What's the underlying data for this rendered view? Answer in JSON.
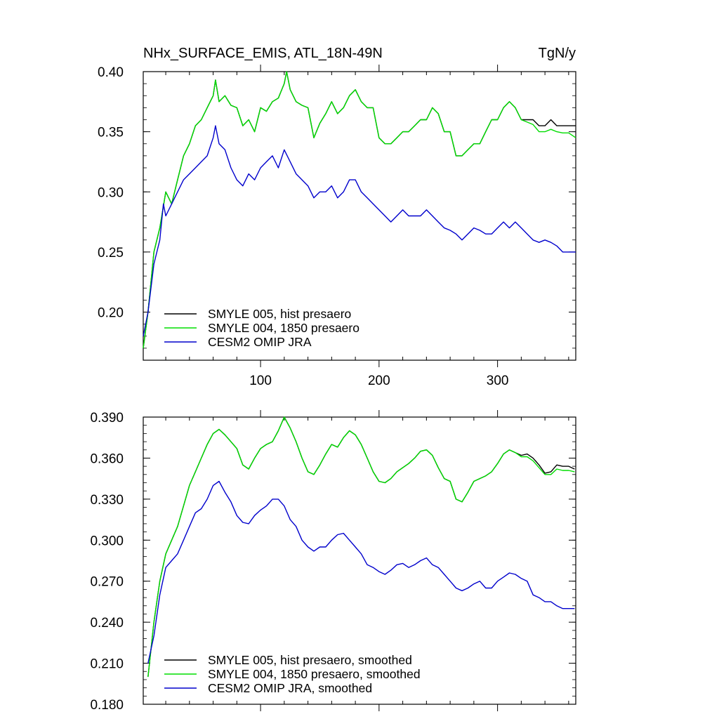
{
  "chart_data": [
    {
      "type": "line",
      "title_left": "NHx_SURFACE_EMIS, ATL_18N-49N",
      "title_right": "TgN/y",
      "xlabel": "",
      "ylabel": "",
      "xlim": [
        1,
        366
      ],
      "ylim": [
        0.16,
        0.4
      ],
      "x_ticks": [
        100,
        200,
        300
      ],
      "x_tick_labels": [
        "100",
        "200",
        "300"
      ],
      "y_ticks": [
        0.2,
        0.25,
        0.3,
        0.35,
        0.4
      ],
      "y_tick_labels": [
        "0.20",
        "0.25",
        "0.30",
        "0.35",
        "0.40"
      ],
      "grid": false,
      "legend_position": "bottom-left",
      "series": [
        {
          "name": "SMYLE 005, hist presaero",
          "color": "#000000",
          "x": [
            1,
            5,
            10,
            15,
            20,
            25,
            30,
            35,
            40,
            45,
            50,
            55,
            60,
            62,
            65,
            70,
            75,
            80,
            85,
            90,
            95,
            100,
            105,
            110,
            115,
            120,
            122,
            125,
            130,
            135,
            140,
            145,
            150,
            155,
            160,
            165,
            170,
            175,
            180,
            185,
            190,
            195,
            200,
            205,
            210,
            215,
            220,
            225,
            230,
            235,
            240,
            245,
            250,
            255,
            260,
            265,
            270,
            275,
            280,
            285,
            290,
            295,
            300,
            305,
            310,
            315,
            320,
            325,
            330,
            335,
            340,
            345,
            350,
            355,
            360,
            366
          ],
          "values": [
            0.17,
            0.2,
            0.25,
            0.27,
            0.3,
            0.29,
            0.31,
            0.33,
            0.34,
            0.355,
            0.36,
            0.37,
            0.38,
            0.393,
            0.375,
            0.38,
            0.372,
            0.37,
            0.355,
            0.36,
            0.35,
            0.37,
            0.367,
            0.375,
            0.378,
            0.39,
            0.4,
            0.385,
            0.375,
            0.372,
            0.37,
            0.345,
            0.357,
            0.365,
            0.375,
            0.365,
            0.37,
            0.38,
            0.385,
            0.375,
            0.37,
            0.37,
            0.345,
            0.34,
            0.34,
            0.345,
            0.35,
            0.35,
            0.355,
            0.36,
            0.36,
            0.37,
            0.365,
            0.35,
            0.35,
            0.33,
            0.33,
            0.335,
            0.34,
            0.34,
            0.35,
            0.36,
            0.36,
            0.37,
            0.375,
            0.37,
            0.36,
            0.36,
            0.36,
            0.355,
            0.355,
            0.36,
            0.355,
            0.355,
            0.355,
            0.355
          ]
        },
        {
          "name": "SMYLE 004, 1850 presaero",
          "color": "#00dd00",
          "x": [
            1,
            5,
            10,
            15,
            20,
            25,
            30,
            35,
            40,
            45,
            50,
            55,
            60,
            62,
            65,
            70,
            75,
            80,
            85,
            90,
            95,
            100,
            105,
            110,
            115,
            120,
            122,
            125,
            130,
            135,
            140,
            145,
            150,
            155,
            160,
            165,
            170,
            175,
            180,
            185,
            190,
            195,
            200,
            205,
            210,
            215,
            220,
            225,
            230,
            235,
            240,
            245,
            250,
            255,
            260,
            265,
            270,
            275,
            280,
            285,
            290,
            295,
            300,
            305,
            310,
            315,
            320,
            325,
            330,
            335,
            340,
            345,
            350,
            355,
            360,
            366
          ],
          "values": [
            0.17,
            0.2,
            0.25,
            0.27,
            0.3,
            0.29,
            0.31,
            0.33,
            0.34,
            0.355,
            0.36,
            0.37,
            0.38,
            0.393,
            0.375,
            0.38,
            0.372,
            0.37,
            0.355,
            0.36,
            0.35,
            0.37,
            0.367,
            0.375,
            0.378,
            0.39,
            0.4,
            0.385,
            0.375,
            0.372,
            0.37,
            0.345,
            0.357,
            0.365,
            0.375,
            0.365,
            0.37,
            0.38,
            0.385,
            0.375,
            0.37,
            0.37,
            0.345,
            0.34,
            0.34,
            0.345,
            0.35,
            0.35,
            0.355,
            0.36,
            0.36,
            0.37,
            0.365,
            0.35,
            0.35,
            0.33,
            0.33,
            0.335,
            0.34,
            0.34,
            0.35,
            0.36,
            0.36,
            0.37,
            0.375,
            0.37,
            0.36,
            0.358,
            0.356,
            0.35,
            0.35,
            0.352,
            0.35,
            0.349,
            0.349,
            0.345
          ]
        },
        {
          "name": "CESM2 OMIP JRA",
          "color": "#0000cc",
          "x": [
            1,
            5,
            10,
            15,
            18,
            20,
            25,
            30,
            35,
            40,
            45,
            50,
            55,
            60,
            62,
            65,
            70,
            75,
            80,
            85,
            90,
            95,
            100,
            105,
            110,
            115,
            120,
            125,
            130,
            135,
            140,
            145,
            150,
            155,
            160,
            165,
            170,
            175,
            180,
            185,
            190,
            195,
            200,
            205,
            210,
            215,
            220,
            225,
            230,
            235,
            240,
            245,
            250,
            255,
            260,
            265,
            270,
            275,
            280,
            285,
            290,
            295,
            300,
            305,
            310,
            315,
            320,
            325,
            330,
            335,
            340,
            345,
            350,
            355,
            360,
            366
          ],
          "values": [
            0.18,
            0.2,
            0.24,
            0.26,
            0.29,
            0.28,
            0.29,
            0.3,
            0.31,
            0.315,
            0.32,
            0.325,
            0.33,
            0.345,
            0.355,
            0.34,
            0.335,
            0.32,
            0.31,
            0.305,
            0.315,
            0.31,
            0.32,
            0.325,
            0.33,
            0.32,
            0.335,
            0.325,
            0.315,
            0.31,
            0.305,
            0.295,
            0.3,
            0.3,
            0.305,
            0.295,
            0.3,
            0.31,
            0.31,
            0.3,
            0.295,
            0.29,
            0.285,
            0.28,
            0.275,
            0.28,
            0.285,
            0.28,
            0.28,
            0.28,
            0.285,
            0.28,
            0.275,
            0.27,
            0.268,
            0.265,
            0.26,
            0.265,
            0.27,
            0.268,
            0.265,
            0.265,
            0.27,
            0.275,
            0.27,
            0.275,
            0.27,
            0.265,
            0.26,
            0.258,
            0.26,
            0.258,
            0.255,
            0.25,
            0.25,
            0.25
          ]
        }
      ]
    },
    {
      "type": "line",
      "title": "",
      "xlabel": "",
      "ylabel": "",
      "xlim": [
        1,
        366
      ],
      "ylim": [
        0.18,
        0.39
      ],
      "x_ticks": [
        100,
        200,
        300
      ],
      "y_ticks": [
        0.18,
        0.21,
        0.24,
        0.27,
        0.3,
        0.33,
        0.36,
        0.39
      ],
      "y_tick_labels": [
        "0.180",
        "0.210",
        "0.240",
        "0.270",
        "0.300",
        "0.330",
        "0.360",
        "0.390"
      ],
      "grid": false,
      "legend_position": "bottom-left",
      "series": [
        {
          "name": "SMYLE 005, hist presaero, smoothed",
          "color": "#000000",
          "x": [
            5,
            10,
            15,
            20,
            25,
            30,
            35,
            40,
            45,
            50,
            55,
            60,
            65,
            70,
            75,
            80,
            85,
            90,
            95,
            100,
            105,
            110,
            115,
            120,
            125,
            130,
            135,
            140,
            145,
            150,
            155,
            160,
            165,
            170,
            175,
            180,
            185,
            190,
            195,
            200,
            205,
            210,
            215,
            220,
            225,
            230,
            235,
            240,
            245,
            250,
            255,
            260,
            265,
            270,
            275,
            280,
            285,
            290,
            295,
            300,
            305,
            310,
            315,
            320,
            325,
            330,
            335,
            340,
            345,
            350,
            355,
            360,
            365
          ],
          "values": [
            0.2,
            0.24,
            0.27,
            0.29,
            0.3,
            0.31,
            0.325,
            0.34,
            0.35,
            0.36,
            0.37,
            0.378,
            0.381,
            0.377,
            0.372,
            0.367,
            0.355,
            0.352,
            0.36,
            0.367,
            0.37,
            0.372,
            0.38,
            0.39,
            0.382,
            0.372,
            0.36,
            0.35,
            0.348,
            0.355,
            0.363,
            0.37,
            0.368,
            0.375,
            0.38,
            0.377,
            0.37,
            0.36,
            0.35,
            0.343,
            0.342,
            0.345,
            0.35,
            0.353,
            0.356,
            0.36,
            0.365,
            0.366,
            0.362,
            0.353,
            0.345,
            0.343,
            0.33,
            0.328,
            0.335,
            0.343,
            0.345,
            0.347,
            0.35,
            0.356,
            0.363,
            0.366,
            0.364,
            0.362,
            0.363,
            0.36,
            0.355,
            0.349,
            0.35,
            0.355,
            0.354,
            0.354,
            0.352
          ]
        },
        {
          "name": "SMYLE 004, 1850 presaero, smoothed",
          "color": "#00dd00",
          "x": [
            5,
            10,
            15,
            20,
            25,
            30,
            35,
            40,
            45,
            50,
            55,
            60,
            65,
            70,
            75,
            80,
            85,
            90,
            95,
            100,
            105,
            110,
            115,
            120,
            125,
            130,
            135,
            140,
            145,
            150,
            155,
            160,
            165,
            170,
            175,
            180,
            185,
            190,
            195,
            200,
            205,
            210,
            215,
            220,
            225,
            230,
            235,
            240,
            245,
            250,
            255,
            260,
            265,
            270,
            275,
            280,
            285,
            290,
            295,
            300,
            305,
            310,
            315,
            320,
            325,
            330,
            335,
            340,
            345,
            350,
            355,
            360,
            365
          ],
          "values": [
            0.2,
            0.24,
            0.27,
            0.29,
            0.3,
            0.31,
            0.325,
            0.34,
            0.35,
            0.36,
            0.37,
            0.378,
            0.381,
            0.377,
            0.372,
            0.367,
            0.355,
            0.352,
            0.36,
            0.367,
            0.37,
            0.372,
            0.38,
            0.39,
            0.382,
            0.372,
            0.36,
            0.35,
            0.348,
            0.355,
            0.363,
            0.37,
            0.368,
            0.375,
            0.38,
            0.377,
            0.37,
            0.36,
            0.35,
            0.343,
            0.342,
            0.345,
            0.35,
            0.353,
            0.356,
            0.36,
            0.365,
            0.366,
            0.362,
            0.353,
            0.345,
            0.343,
            0.33,
            0.328,
            0.335,
            0.343,
            0.345,
            0.347,
            0.35,
            0.356,
            0.363,
            0.366,
            0.364,
            0.361,
            0.361,
            0.358,
            0.353,
            0.348,
            0.348,
            0.352,
            0.351,
            0.351,
            0.35
          ]
        },
        {
          "name": "CESM2 OMIP JRA, smoothed",
          "color": "#0000cc",
          "x": [
            5,
            10,
            15,
            20,
            25,
            30,
            35,
            40,
            45,
            50,
            55,
            60,
            65,
            70,
            75,
            80,
            85,
            90,
            95,
            100,
            105,
            110,
            115,
            120,
            125,
            130,
            135,
            140,
            145,
            150,
            155,
            160,
            165,
            170,
            175,
            180,
            185,
            190,
            195,
            200,
            205,
            210,
            215,
            220,
            225,
            230,
            235,
            240,
            245,
            250,
            255,
            260,
            265,
            270,
            275,
            280,
            285,
            290,
            295,
            300,
            305,
            310,
            315,
            320,
            325,
            330,
            335,
            340,
            345,
            350,
            355,
            360,
            365
          ],
          "values": [
            0.21,
            0.23,
            0.26,
            0.28,
            0.285,
            0.29,
            0.3,
            0.31,
            0.32,
            0.323,
            0.33,
            0.34,
            0.343,
            0.335,
            0.328,
            0.318,
            0.313,
            0.312,
            0.318,
            0.322,
            0.325,
            0.33,
            0.33,
            0.325,
            0.315,
            0.31,
            0.3,
            0.295,
            0.292,
            0.295,
            0.295,
            0.3,
            0.304,
            0.305,
            0.3,
            0.295,
            0.29,
            0.282,
            0.28,
            0.277,
            0.275,
            0.278,
            0.282,
            0.283,
            0.28,
            0.282,
            0.285,
            0.287,
            0.282,
            0.28,
            0.275,
            0.27,
            0.265,
            0.263,
            0.265,
            0.268,
            0.27,
            0.265,
            0.265,
            0.27,
            0.273,
            0.276,
            0.275,
            0.272,
            0.27,
            0.26,
            0.258,
            0.255,
            0.255,
            0.252,
            0.25,
            0.25,
            0.25
          ]
        }
      ]
    }
  ]
}
